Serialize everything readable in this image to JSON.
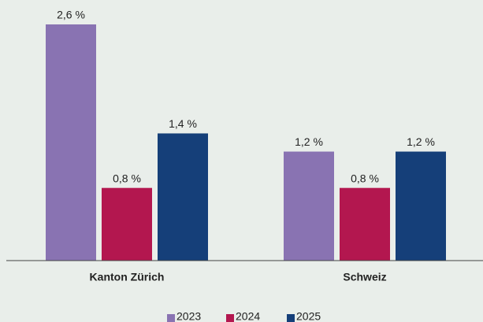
{
  "chart_data": {
    "type": "bar",
    "categories": [
      "Kanton Zürich",
      "Schweiz"
    ],
    "series": [
      {
        "name": "2023",
        "color": "#8973b2",
        "values": [
          2.6,
          1.2
        ],
        "value_labels": [
          "2,6 %",
          "1,2 %"
        ]
      },
      {
        "name": "2024",
        "color": "#b3174f",
        "values": [
          0.8,
          0.8
        ],
        "value_labels": [
          "0,8 %",
          "0,8 %"
        ]
      },
      {
        "name": "2025",
        "color": "#153f79",
        "values": [
          1.4,
          1.2
        ],
        "value_labels": [
          "1,4 %",
          "1,2 %"
        ]
      }
    ],
    "legend": "bottom"
  }
}
